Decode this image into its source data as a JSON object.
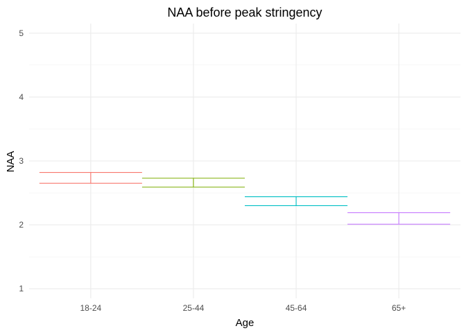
{
  "chart_data": {
    "type": "errorbar",
    "title": "NAA before peak stringency",
    "xlabel": "Age",
    "ylabel": "NAA",
    "categories": [
      "18-24",
      "25-44",
      "45-64",
      "65+"
    ],
    "lower": [
      2.65,
      2.59,
      2.3,
      2.01
    ],
    "upper": [
      2.82,
      2.73,
      2.44,
      2.19
    ],
    "colors": [
      "#F8766D",
      "#7CAE00",
      "#00BFC4",
      "#C77CFF"
    ],
    "y_ticks": [
      1,
      2,
      3,
      4,
      5
    ],
    "ylim": [
      0.85,
      5.15
    ],
    "grid": true,
    "legend": "none"
  }
}
